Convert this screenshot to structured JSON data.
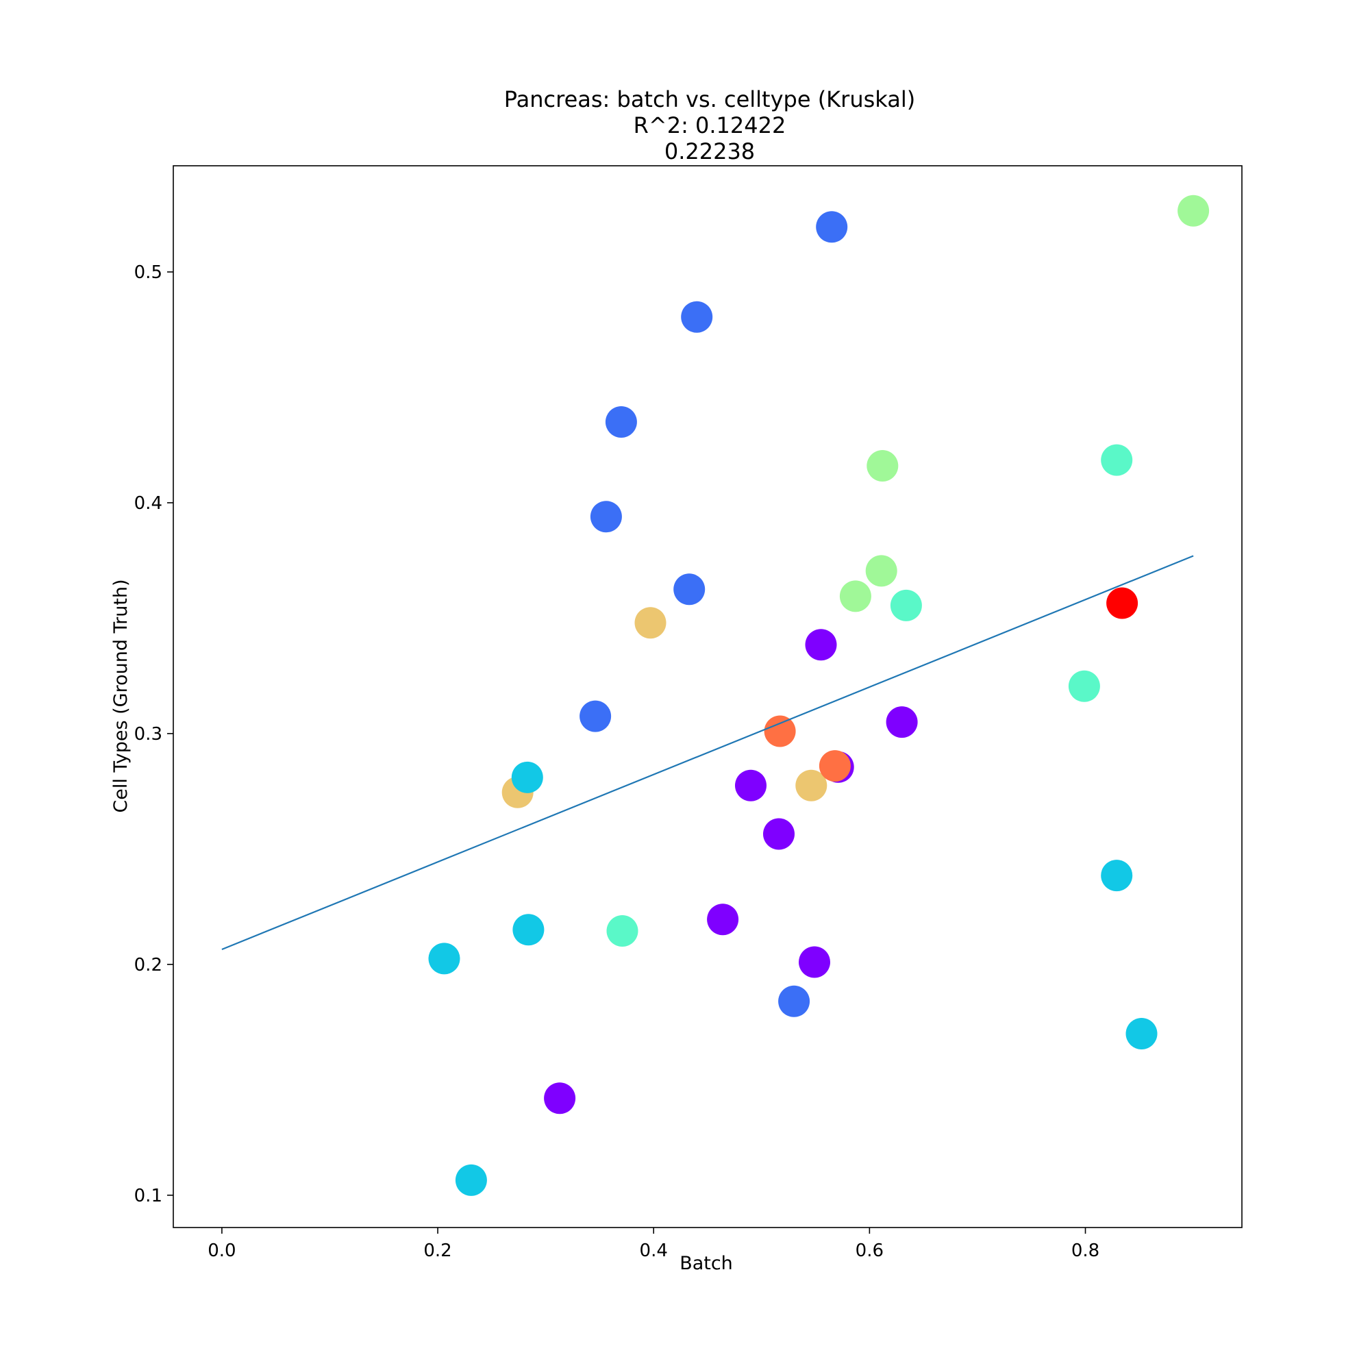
{
  "chart_data": {
    "type": "scatter",
    "title_lines": [
      "Pancreas: batch vs. celltype (Kruskal)",
      "R^2: 0.12422",
      "0.22238"
    ],
    "xlabel": "Batch",
    "ylabel": "Cell Types (Ground Truth)",
    "xlim": [
      -0.045,
      0.945
    ],
    "ylim": [
      0.086,
      0.546
    ],
    "xticks": [
      {
        "value": 0.0,
        "label": "0.0"
      },
      {
        "value": 0.2,
        "label": "0.2"
      },
      {
        "value": 0.4,
        "label": "0.4"
      },
      {
        "value": 0.6,
        "label": "0.6"
      },
      {
        "value": 0.8,
        "label": "0.8"
      }
    ],
    "yticks": [
      {
        "value": 0.1,
        "label": "0.1"
      },
      {
        "value": 0.2,
        "label": "0.2"
      },
      {
        "value": 0.3,
        "label": "0.3"
      },
      {
        "value": 0.4,
        "label": "0.4"
      },
      {
        "value": 0.5,
        "label": "0.5"
      }
    ],
    "fit_line": {
      "x": [
        0.0,
        0.9
      ],
      "y": [
        0.2065,
        0.377
      ],
      "color": "#1f77b4"
    },
    "points": [
      {
        "x": 0.565,
        "y": 0.5195,
        "color": "#3b6ff6"
      },
      {
        "x": 0.44,
        "y": 0.4805,
        "color": "#3b6ff6"
      },
      {
        "x": 0.37,
        "y": 0.435,
        "color": "#3b6ff6"
      },
      {
        "x": 0.356,
        "y": 0.394,
        "color": "#3b6ff6"
      },
      {
        "x": 0.433,
        "y": 0.3625,
        "color": "#3b6ff6"
      },
      {
        "x": 0.346,
        "y": 0.3075,
        "color": "#3b6ff6"
      },
      {
        "x": 0.53,
        "y": 0.184,
        "color": "#3b6ff6"
      },
      {
        "x": 0.9,
        "y": 0.5265,
        "color": "#a0f898"
      },
      {
        "x": 0.612,
        "y": 0.416,
        "color": "#a0f898"
      },
      {
        "x": 0.611,
        "y": 0.3705,
        "color": "#a0f898"
      },
      {
        "x": 0.587,
        "y": 0.3595,
        "color": "#a0f898"
      },
      {
        "x": 0.829,
        "y": 0.4185,
        "color": "#5af8c8"
      },
      {
        "x": 0.634,
        "y": 0.3555,
        "color": "#5af8c8"
      },
      {
        "x": 0.799,
        "y": 0.3205,
        "color": "#5af8c8"
      },
      {
        "x": 0.371,
        "y": 0.2145,
        "color": "#5af8c8"
      },
      {
        "x": 0.834,
        "y": 0.3565,
        "color": "#ff0000"
      },
      {
        "x": 0.397,
        "y": 0.348,
        "color": "#ecc670"
      },
      {
        "x": 0.274,
        "y": 0.2745,
        "color": "#ecc670"
      },
      {
        "x": 0.546,
        "y": 0.2775,
        "color": "#ecc670"
      },
      {
        "x": 0.555,
        "y": 0.3385,
        "color": "#7f00ff"
      },
      {
        "x": 0.63,
        "y": 0.305,
        "color": "#7f00ff"
      },
      {
        "x": 0.571,
        "y": 0.2855,
        "color": "#7f00ff"
      },
      {
        "x": 0.49,
        "y": 0.2775,
        "color": "#7f00ff"
      },
      {
        "x": 0.516,
        "y": 0.2565,
        "color": "#7f00ff"
      },
      {
        "x": 0.464,
        "y": 0.2195,
        "color": "#7f00ff"
      },
      {
        "x": 0.549,
        "y": 0.201,
        "color": "#7f00ff"
      },
      {
        "x": 0.313,
        "y": 0.142,
        "color": "#7f00ff"
      },
      {
        "x": 0.517,
        "y": 0.301,
        "color": "#ff7043"
      },
      {
        "x": 0.568,
        "y": 0.286,
        "color": "#ff7043"
      },
      {
        "x": 0.283,
        "y": 0.281,
        "color": "#12c8e6"
      },
      {
        "x": 0.284,
        "y": 0.215,
        "color": "#12c8e6"
      },
      {
        "x": 0.206,
        "y": 0.2025,
        "color": "#12c8e6"
      },
      {
        "x": 0.829,
        "y": 0.2385,
        "color": "#12c8e6"
      },
      {
        "x": 0.852,
        "y": 0.17,
        "color": "#12c8e6"
      },
      {
        "x": 0.231,
        "y": 0.1065,
        "color": "#12c8e6"
      }
    ]
  }
}
